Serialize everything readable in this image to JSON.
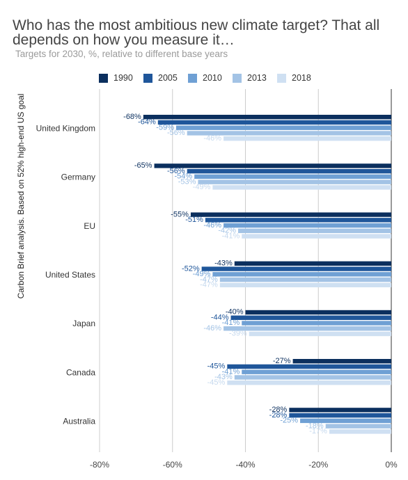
{
  "chart_data": {
    "type": "bar",
    "orientation": "horizontal",
    "title": "Who has the most ambitious new climate target? That all depends on how you measure it…",
    "subtitle": "Targets for 2030, %, relative to different base years",
    "ylabel": "Carbon Brief analysis. Based on 52% high-end US goal",
    "xlabel": "",
    "xlim": [
      -80,
      0
    ],
    "x_ticks": [
      -80,
      -60,
      -40,
      -20,
      0
    ],
    "x_tick_labels": [
      "-80%",
      "-60%",
      "-40%",
      "-20%",
      "0%"
    ],
    "grid": "vertical",
    "legend_position": "top",
    "categories": [
      "United Kingdom",
      "Germany",
      "EU",
      "United States",
      "Japan",
      "Canada",
      "Australia"
    ],
    "series": [
      {
        "name": "1990",
        "color": "#0b2f5e",
        "label_color": "#0b2f5e",
        "values": [
          -68,
          -65,
          -55,
          -43,
          -40,
          -27,
          -28
        ]
      },
      {
        "name": "2005",
        "color": "#1f569a",
        "label_color": "#1f569a",
        "values": [
          -64,
          -56,
          -51,
          -52,
          -44,
          -45,
          -28
        ]
      },
      {
        "name": "2010",
        "color": "#6fa0d4",
        "label_color": "#6fa0d4",
        "values": [
          -59,
          -54,
          -46,
          -49,
          -41,
          -41,
          -25
        ]
      },
      {
        "name": "2013",
        "color": "#a3c3e5",
        "label_color": "#a3c3e5",
        "values": [
          -56,
          -53,
          -42,
          -47,
          -46,
          -43,
          -18
        ]
      },
      {
        "name": "2018",
        "color": "#cfe0f2",
        "label_color": "#c6d9ee",
        "values": [
          -46,
          -49,
          -41,
          -47,
          -39,
          -45,
          -17
        ]
      }
    ],
    "data_labels": [
      [
        "-68%",
        "-64%",
        "-59%",
        "-56%",
        "-46%"
      ],
      [
        "-65%",
        "-56%",
        "-54%",
        "-53%",
        "-49%"
      ],
      [
        "-55%",
        "-51%",
        "-46%",
        "-42%",
        "-41%"
      ],
      [
        "-43%",
        "-52%",
        "-49%",
        "-47%",
        "-47%"
      ],
      [
        "-40%",
        "-44%",
        "-41%",
        "-46%",
        "-39%"
      ],
      [
        "-27%",
        "-45%",
        "-41%",
        "-43%",
        "-45%"
      ],
      [
        "-28%",
        "-28%",
        "-25%",
        "-18%",
        "-17%"
      ]
    ]
  }
}
